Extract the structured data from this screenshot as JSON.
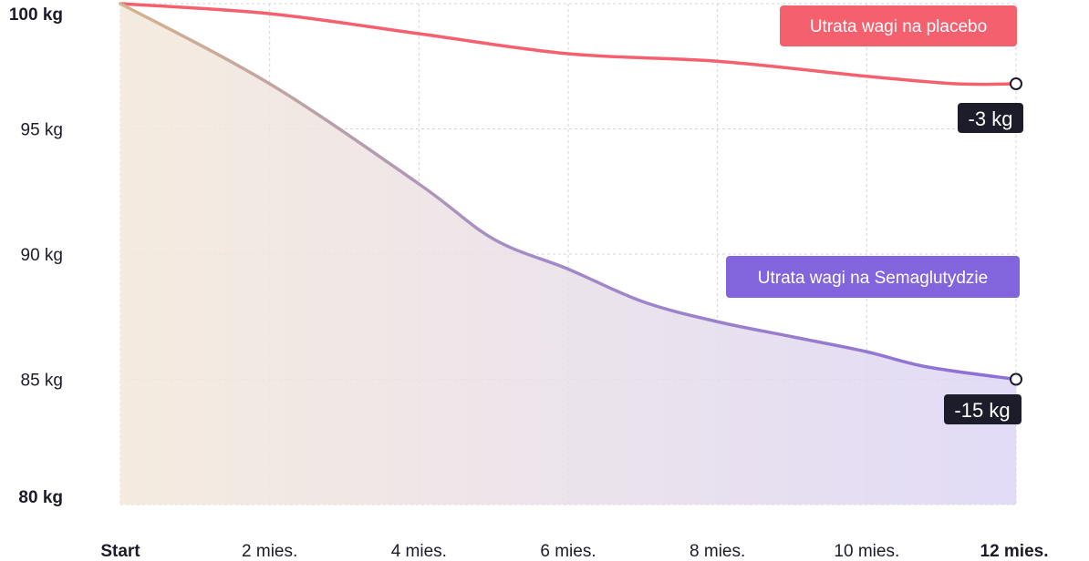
{
  "chart_data": {
    "type": "line",
    "title": "",
    "xlabel": "",
    "ylabel": "",
    "ylim": [
      80,
      100
    ],
    "y_ticks": [
      {
        "value": 100,
        "label": "100 kg",
        "bold": true
      },
      {
        "value": 95,
        "label": "95 kg",
        "bold": false
      },
      {
        "value": 90,
        "label": "90 kg",
        "bold": false
      },
      {
        "value": 85,
        "label": "85 kg",
        "bold": false
      },
      {
        "value": 80,
        "label": "80 kg",
        "bold": true
      }
    ],
    "x_ticks": [
      {
        "value": 0,
        "label": "Start",
        "bold": true
      },
      {
        "value": 2,
        "label": "2 mies.",
        "bold": false
      },
      {
        "value": 4,
        "label": "4 mies.",
        "bold": false
      },
      {
        "value": 6,
        "label": "6 mies.",
        "bold": false
      },
      {
        "value": 8,
        "label": "8 mies.",
        "bold": false
      },
      {
        "value": 10,
        "label": "10 mies.",
        "bold": false
      },
      {
        "value": 12,
        "label": "12 mies.",
        "bold": true
      }
    ],
    "xlim": [
      0,
      12
    ],
    "grid": true,
    "series": [
      {
        "name": "Utrata wagi na placebo",
        "color": "#f5606e",
        "x": [
          0,
          2,
          4,
          6,
          8,
          10,
          11.2,
          12
        ],
        "values": [
          100,
          99.6,
          98.8,
          98.0,
          97.7,
          97.1,
          96.8,
          96.8
        ],
        "end_label": "-3 kg",
        "legend_position": "top-right"
      },
      {
        "name": "Utrata wagi na Semaglutydzie",
        "color": "#8c6fd6",
        "x": [
          0,
          2,
          4,
          5,
          6,
          7,
          8,
          9,
          10,
          10.8,
          12
        ],
        "values": [
          100,
          96.8,
          92.8,
          90.6,
          89.4,
          88.1,
          87.3,
          86.7,
          86.1,
          85.5,
          85.0
        ],
        "end_label": "-15 kg",
        "legend_position": "middle-right",
        "fill_colors": [
          "#f3e8da",
          "#ddd5f5"
        ]
      }
    ]
  },
  "colors": {
    "grid": "#d6d6d6",
    "label_bg": "#1c1c2a",
    "placebo_legend_bg": "#f5606e",
    "sema_legend_bg": "#8265dd"
  }
}
